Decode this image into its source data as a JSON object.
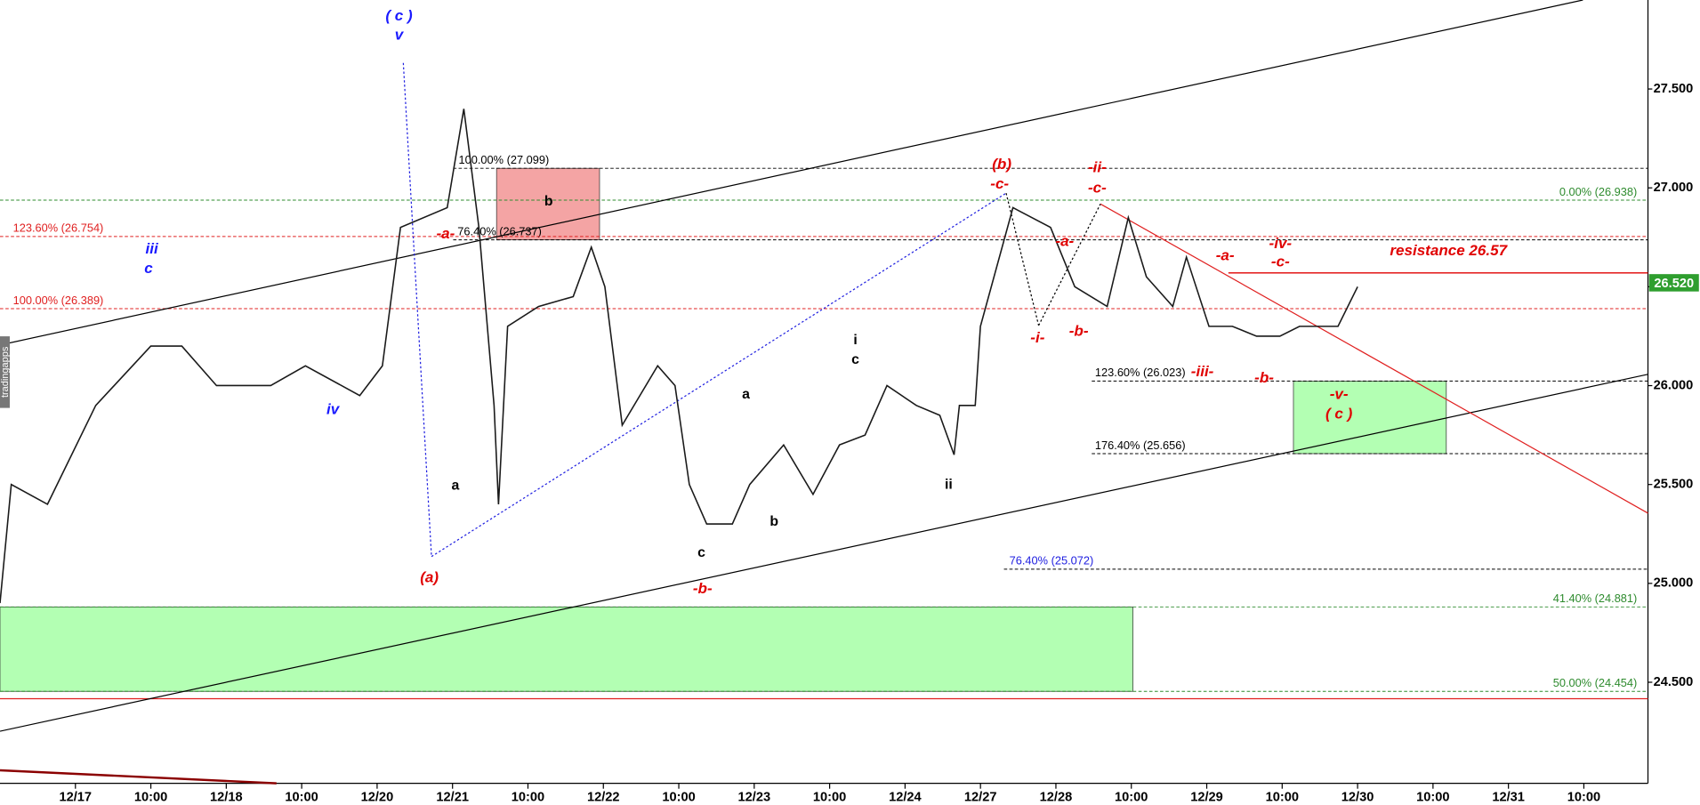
{
  "chart_data": {
    "type": "line",
    "watermark": "tradingapps",
    "xlim": [
      -1.0,
      20.85
    ],
    "ylim": [
      24.0,
      27.95
    ],
    "xticks": [
      {
        "value": 0,
        "label": "12/17"
      },
      {
        "value": 1,
        "label": "10:00"
      },
      {
        "value": 2,
        "label": "12/18"
      },
      {
        "value": 3,
        "label": "10:00"
      },
      {
        "value": 4,
        "label": "12/20"
      },
      {
        "value": 5,
        "label": "12/21"
      },
      {
        "value": 6,
        "label": "10:00"
      },
      {
        "value": 7,
        "label": "12/22"
      },
      {
        "value": 8,
        "label": "10:00"
      },
      {
        "value": 9,
        "label": "12/23"
      },
      {
        "value": 10,
        "label": "10:00"
      },
      {
        "value": 11,
        "label": "12/24"
      },
      {
        "value": 12,
        "label": "12/27"
      },
      {
        "value": 13,
        "label": "12/28"
      },
      {
        "value": 14,
        "label": "10:00"
      },
      {
        "value": 15,
        "label": "12/29"
      },
      {
        "value": 16,
        "label": "10:00"
      },
      {
        "value": 17,
        "label": "12/30"
      },
      {
        "value": 18,
        "label": "10:00"
      },
      {
        "value": 19,
        "label": "12/31"
      },
      {
        "value": 20,
        "label": "10:00"
      }
    ],
    "yticks": [
      {
        "value": 24.5,
        "label": "24.500"
      },
      {
        "value": 25,
        "label": "25.000"
      },
      {
        "value": 25.5,
        "label": "25.500"
      },
      {
        "value": 26,
        "label": "26.000"
      },
      {
        "value": 26.5,
        "label": "26.500"
      },
      {
        "value": 27,
        "label": "27.000"
      },
      {
        "value": 27.5,
        "label": "27.500"
      }
    ],
    "series": [
      {
        "color": "#1a1a1a",
        "x": [
          -1.0,
          -0.85,
          -0.37,
          0.27,
          1.0,
          1.41,
          1.87,
          2.59,
          3.05,
          3.77,
          4.07,
          4.31,
          4.93,
          5.15,
          5.35,
          5.55,
          5.61,
          5.73,
          6.14,
          6.6,
          6.84,
          7.02,
          7.25,
          7.72,
          7.95,
          8.14,
          8.37,
          8.71,
          8.94,
          9.39,
          9.78,
          10.13,
          10.47,
          10.76,
          11.15,
          11.46,
          11.65,
          11.72,
          11.93,
          12.0,
          12.43,
          12.93,
          13.25,
          13.68,
          13.96,
          14.2,
          14.55,
          14.73,
          15.03,
          15.34,
          15.66,
          15.97,
          16.23,
          16.49,
          16.74,
          17.0
        ],
        "values": [
          24.9,
          25.5,
          25.4,
          25.9,
          26.2,
          26.2,
          26.0,
          26.0,
          26.1,
          25.95,
          26.1,
          26.8,
          26.9,
          27.4,
          26.8,
          25.9,
          25.4,
          26.3,
          26.4,
          26.45,
          26.7,
          26.5,
          25.8,
          26.1,
          26.0,
          25.5,
          25.3,
          25.3,
          25.5,
          25.7,
          25.45,
          25.7,
          25.75,
          26.0,
          25.9,
          25.85,
          25.65,
          25.9,
          25.9,
          26.3,
          26.9,
          26.8,
          26.5,
          26.4,
          26.85,
          26.55,
          26.4,
          26.65,
          26.3,
          26.3,
          26.25,
          26.25,
          26.3,
          26.3,
          26.3,
          26.5
        ]
      }
    ],
    "last_price": {
      "value": 26.52,
      "label": "26.520",
      "color": "#2e9e2e"
    },
    "levels": [
      {
        "label": "100.00% (27.099)",
        "value": 27.099,
        "color": "#000000"
      },
      {
        "label": "76.40% (26.737)",
        "value": 26.737,
        "color": "#000000"
      },
      {
        "label": "123.60% (26.754)",
        "value": 26.754,
        "color": "#e02020"
      },
      {
        "label": "100.00% (26.389)",
        "value": 26.389,
        "color": "#e02020"
      },
      {
        "label": "0.00% (26.938)",
        "value": 26.938,
        "color": "#2e8b2e"
      },
      {
        "label": "41.40% (24.881)",
        "value": 24.881,
        "color": "#2e8b2e"
      },
      {
        "label": "50.00% (24.454)",
        "value": 24.454,
        "color": "#2e8b2e"
      },
      {
        "label": "123.60% (26.023)",
        "value": 26.023,
        "color": "#000000"
      },
      {
        "label": "176.40% (25.656)",
        "value": 25.656,
        "color": "#000000"
      },
      {
        "label": "76.40% (25.072)",
        "value": 25.072,
        "color": "#2020e0"
      }
    ],
    "resistance": {
      "label": "resistance 26.57",
      "value": 26.57,
      "color": "#e00000"
    },
    "zones": [
      {
        "from": 27.099,
        "to": 26.737,
        "color": "#f4a4a4"
      },
      {
        "from": 26.023,
        "to": 25.656,
        "color": "#b3ffb3"
      },
      {
        "from": 24.881,
        "to": 24.454,
        "color": "#b3ffb3"
      }
    ],
    "annotations": [
      {
        "text": "( c )",
        "color": "#1a1aff"
      },
      {
        "text": "v",
        "color": "#1a1aff"
      },
      {
        "text": "iii",
        "color": "#1a1aff"
      },
      {
        "text": "c",
        "color": "#1a1aff"
      },
      {
        "text": "iv",
        "color": "#1a1aff"
      },
      {
        "text": "(a)",
        "color": "#e00000"
      },
      {
        "text": "-a-",
        "color": "#e00000"
      },
      {
        "text": "a",
        "color": "#000000"
      },
      {
        "text": "b",
        "color": "#000000"
      },
      {
        "text": "a",
        "color": "#000000"
      },
      {
        "text": "b",
        "color": "#000000"
      },
      {
        "text": "c",
        "color": "#000000"
      },
      {
        "text": "-b-",
        "color": "#e00000"
      },
      {
        "text": "i",
        "color": "#000000"
      },
      {
        "text": "c",
        "color": "#000000"
      },
      {
        "text": "ii",
        "color": "#000000"
      },
      {
        "text": "(b)",
        "color": "#e00000"
      },
      {
        "text": "-c-",
        "color": "#e00000"
      },
      {
        "text": "-ii-",
        "color": "#e00000"
      },
      {
        "text": "-c-",
        "color": "#e00000"
      },
      {
        "text": "-a-",
        "color": "#e00000"
      },
      {
        "text": "-i-",
        "color": "#e00000"
      },
      {
        "text": "-b-",
        "color": "#e00000"
      },
      {
        "text": "-a-",
        "color": "#e00000"
      },
      {
        "text": "-iv-",
        "color": "#e00000"
      },
      {
        "text": "-c-",
        "color": "#e00000"
      },
      {
        "text": "-iii-",
        "color": "#e00000"
      },
      {
        "text": "-b-",
        "color": "#e00000"
      },
      {
        "text": "-v-",
        "color": "#e00000"
      },
      {
        "text": "( c )",
        "color": "#e00000"
      }
    ]
  }
}
